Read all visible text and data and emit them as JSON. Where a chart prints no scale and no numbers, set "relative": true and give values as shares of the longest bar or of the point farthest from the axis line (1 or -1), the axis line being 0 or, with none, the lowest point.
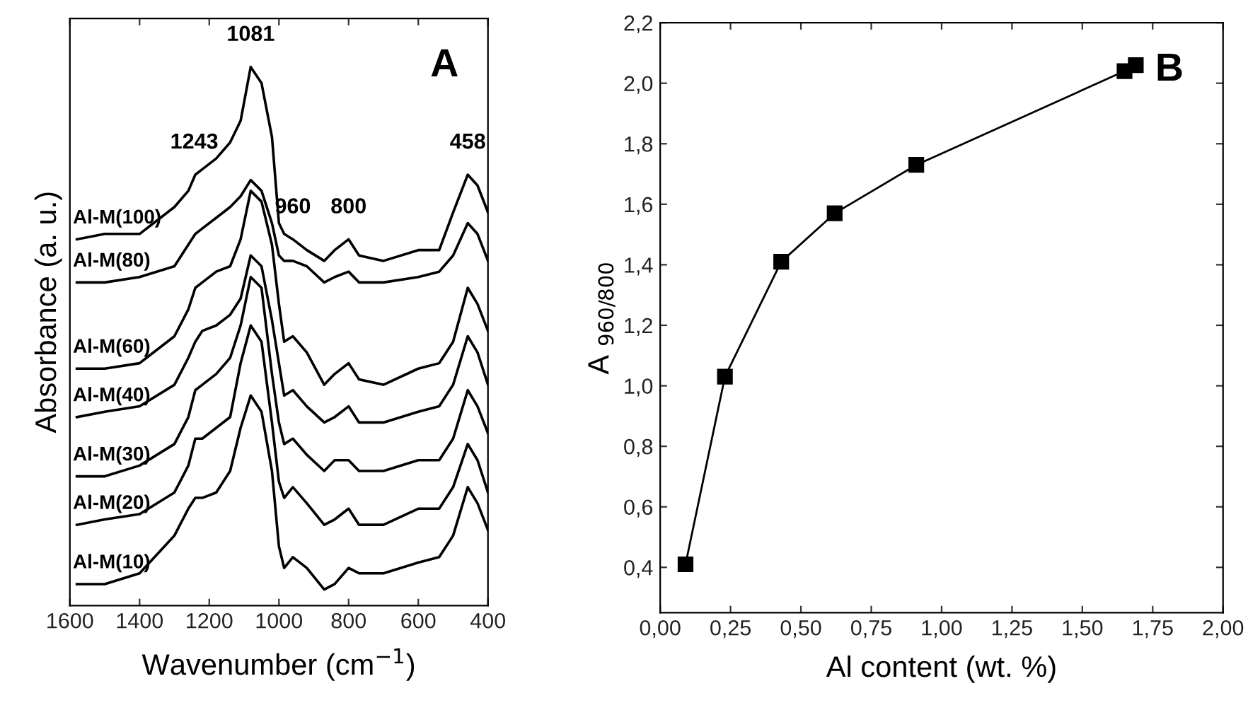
{
  "chart_data": [
    {
      "type": "line",
      "title": "A",
      "xlabel": "Wavenumber (cm$^{−1}$)",
      "ylabel": "Absorbance (a. u.)",
      "relative": true,
      "tick_labels": "x",
      "grid": false,
      "legend": false,
      "marker": "none",
      "line_style": "solid",
      "x": [
        1580,
        1500,
        1400,
        1300,
        1260,
        1240,
        1220,
        1180,
        1140,
        1110,
        1081,
        1050,
        1020,
        1000,
        985,
        960,
        920,
        870,
        840,
        800,
        770,
        700,
        600,
        540,
        500,
        458,
        430,
        400
      ],
      "xlim": [
        1600,
        400
      ],
      "xticks": [
        1600,
        1400,
        1200,
        1000,
        800,
        600,
        400
      ],
      "series": [
        {
          "name": "Al-M(100)",
          "color": "#000000",
          "values": [
            0.68,
            0.69,
            0.69,
            0.74,
            0.77,
            0.8,
            0.81,
            0.83,
            0.86,
            0.9,
            1.0,
            0.97,
            0.87,
            0.71,
            0.69,
            0.68,
            0.66,
            0.64,
            0.66,
            0.68,
            0.65,
            0.64,
            0.66,
            0.66,
            0.73,
            0.8,
            0.78,
            0.73
          ]
        },
        {
          "name": "Al-M(80)",
          "color": "#000000",
          "values": [
            0.6,
            0.6,
            0.61,
            0.63,
            0.67,
            0.69,
            0.7,
            0.72,
            0.74,
            0.76,
            0.79,
            0.77,
            0.71,
            0.65,
            0.64,
            0.64,
            0.63,
            0.6,
            0.61,
            0.62,
            0.6,
            0.6,
            0.61,
            0.62,
            0.65,
            0.71,
            0.69,
            0.64
          ]
        },
        {
          "name": "Al-M(60)",
          "color": "#000000",
          "values": [
            0.44,
            0.44,
            0.45,
            0.5,
            0.55,
            0.59,
            0.6,
            0.62,
            0.63,
            0.68,
            0.77,
            0.75,
            0.67,
            0.56,
            0.49,
            0.5,
            0.47,
            0.41,
            0.43,
            0.45,
            0.42,
            0.41,
            0.44,
            0.45,
            0.49,
            0.59,
            0.56,
            0.51
          ]
        },
        {
          "name": "Al-M(40)",
          "color": "#000000",
          "values": [
            0.35,
            0.36,
            0.37,
            0.41,
            0.46,
            0.49,
            0.51,
            0.52,
            0.54,
            0.57,
            0.65,
            0.63,
            0.53,
            0.45,
            0.39,
            0.4,
            0.37,
            0.34,
            0.35,
            0.37,
            0.34,
            0.34,
            0.36,
            0.37,
            0.41,
            0.5,
            0.47,
            0.41
          ]
        },
        {
          "name": "Al-M(30)",
          "color": "#000000",
          "values": [
            0.24,
            0.24,
            0.26,
            0.3,
            0.35,
            0.4,
            0.41,
            0.43,
            0.46,
            0.52,
            0.61,
            0.59,
            0.43,
            0.34,
            0.3,
            0.31,
            0.28,
            0.25,
            0.27,
            0.27,
            0.25,
            0.25,
            0.27,
            0.27,
            0.31,
            0.4,
            0.37,
            0.32
          ]
        },
        {
          "name": "Al-M(20)",
          "color": "#000000",
          "values": [
            0.15,
            0.16,
            0.17,
            0.21,
            0.26,
            0.31,
            0.31,
            0.33,
            0.35,
            0.45,
            0.52,
            0.49,
            0.34,
            0.23,
            0.2,
            0.22,
            0.19,
            0.15,
            0.16,
            0.18,
            0.15,
            0.15,
            0.18,
            0.18,
            0.22,
            0.3,
            0.27,
            0.21
          ]
        },
        {
          "name": "Al-M(10)",
          "color": "#000000",
          "values": [
            0.04,
            0.04,
            0.06,
            0.13,
            0.18,
            0.2,
            0.2,
            0.21,
            0.25,
            0.33,
            0.39,
            0.36,
            0.25,
            0.11,
            0.07,
            0.09,
            0.07,
            0.03,
            0.04,
            0.07,
            0.06,
            0.06,
            0.08,
            0.09,
            0.13,
            0.22,
            0.19,
            0.14
          ]
        }
      ],
      "annotations": [
        {
          "text": "1081",
          "x": 1081,
          "y": 1.0
        },
        {
          "text": "1243",
          "x": 1243,
          "y": 0.8
        },
        {
          "text": "960",
          "x": 960,
          "y": 0.68
        },
        {
          "text": "800",
          "x": 800,
          "y": 0.68
        },
        {
          "text": "458",
          "x": 458,
          "y": 0.8
        }
      ]
    },
    {
      "type": "line",
      "title": "B",
      "xlabel": "Al content (wt. %)",
      "ylabel": "A $_{960/800}$",
      "grid": false,
      "legend": false,
      "marker": "square",
      "line_style": "solid",
      "x": [
        0.09,
        0.23,
        0.43,
        0.62,
        0.91,
        1.65,
        1.69
      ],
      "series": [
        {
          "color": "#000000",
          "values": [
            0.41,
            1.03,
            1.41,
            1.57,
            1.73,
            2.04,
            2.06
          ]
        }
      ],
      "xlim": [
        0,
        2
      ],
      "xticks": [
        {
          "value": 0,
          "label": "0,00"
        },
        {
          "value": 0.25,
          "label": "0,25"
        },
        {
          "value": 0.5,
          "label": "0,50"
        },
        {
          "value": 0.75,
          "label": "0,75"
        },
        {
          "value": 1,
          "label": "1,00"
        },
        {
          "value": 1.25,
          "label": "1,25"
        },
        {
          "value": 1.5,
          "label": "1,50"
        },
        {
          "value": 1.75,
          "label": "1,75"
        },
        {
          "value": 2,
          "label": "2,00"
        }
      ],
      "ylim": [
        0.25,
        2.2
      ],
      "yticks": [
        {
          "value": 0.4,
          "label": "0,4"
        },
        {
          "value": 0.6,
          "label": "0,6"
        },
        {
          "value": 0.8,
          "label": "0,8"
        },
        {
          "value": 1.0,
          "label": "1,0"
        },
        {
          "value": 1.2,
          "label": "1,2"
        },
        {
          "value": 1.4,
          "label": "1,4"
        },
        {
          "value": 1.6,
          "label": "1,6"
        },
        {
          "value": 1.8,
          "label": "1,8"
        },
        {
          "value": 2.0,
          "label": "2,0"
        },
        {
          "value": 2.2,
          "label": "2,2"
        }
      ]
    }
  ]
}
